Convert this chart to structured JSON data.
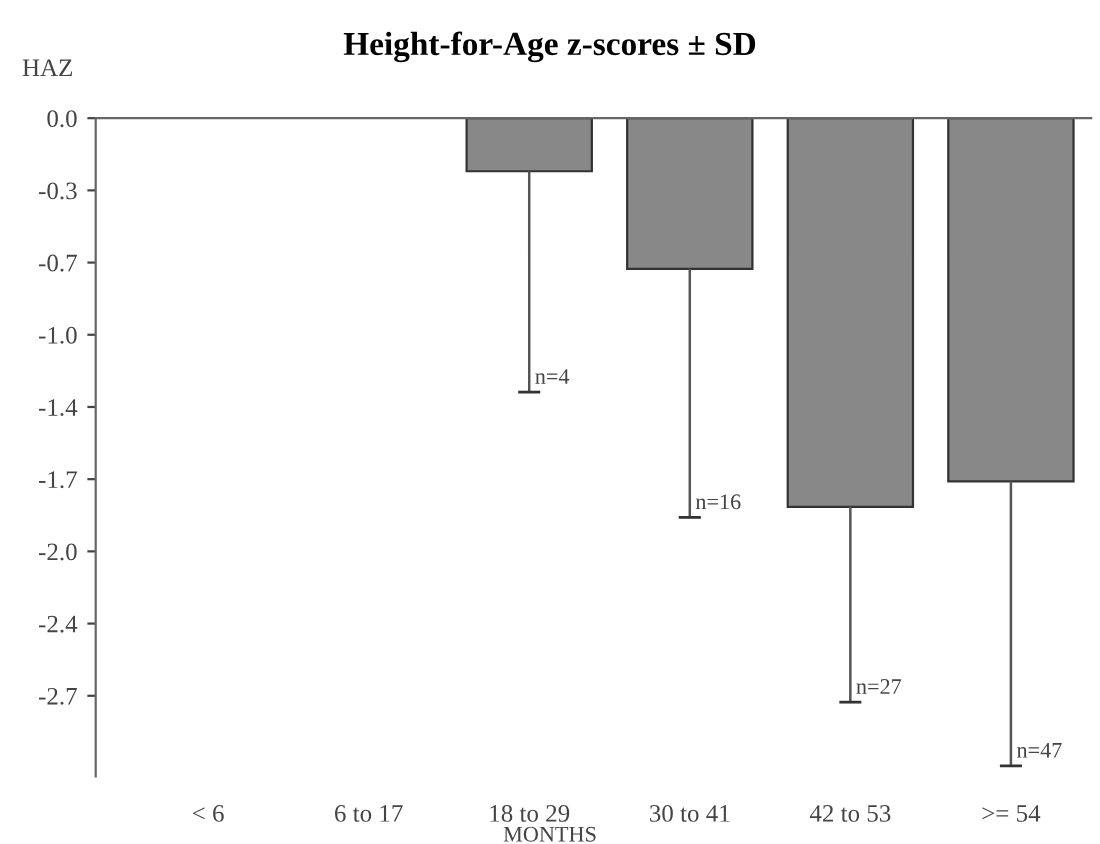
{
  "chart_data": {
    "type": "bar",
    "title": "Height-for-Age z-scores ± SD",
    "ylabel": "HAZ",
    "xlabel": "MONTHS",
    "categories": [
      "< 6",
      "6 to 17",
      "18 to 29",
      "30 to 41",
      "42 to 53",
      ">= 54"
    ],
    "values": [
      null,
      null,
      -0.25,
      -0.71,
      -1.83,
      -1.71
    ],
    "errors": [
      null,
      null,
      [
        -1.29,
        -0.25
      ],
      [
        -1.88,
        -0.71
      ],
      [
        -2.75,
        -1.83
      ],
      [
        -3.05,
        -1.71
      ]
    ],
    "color": "#888888",
    "ylim": [
      -3.1,
      0
    ],
    "yticks": [
      {
        "value": 0,
        "label": "0.0"
      },
      {
        "value": -0.34,
        "label": "-0.3"
      },
      {
        "value": -0.68,
        "label": "-0.7"
      },
      {
        "value": -1.02,
        "label": "-1.0"
      },
      {
        "value": -1.36,
        "label": "-1.4"
      },
      {
        "value": -1.7,
        "label": "-1.7"
      },
      {
        "value": -2.04,
        "label": "-2.0"
      },
      {
        "value": -2.38,
        "label": "-2.4"
      },
      {
        "value": -2.72,
        "label": "-2.7"
      }
    ],
    "annotations": [
      {
        "text": "n=4",
        "x": "18 to 29",
        "y": -1.29
      },
      {
        "text": "n=16",
        "x": "30 to 41",
        "y": -1.88
      },
      {
        "text": "n=27",
        "x": "42 to 53",
        "y": -2.75
      },
      {
        "text": "n=47",
        "x": ">= 54",
        "y": -3.05
      }
    ],
    "grid": false,
    "legend": false
  }
}
